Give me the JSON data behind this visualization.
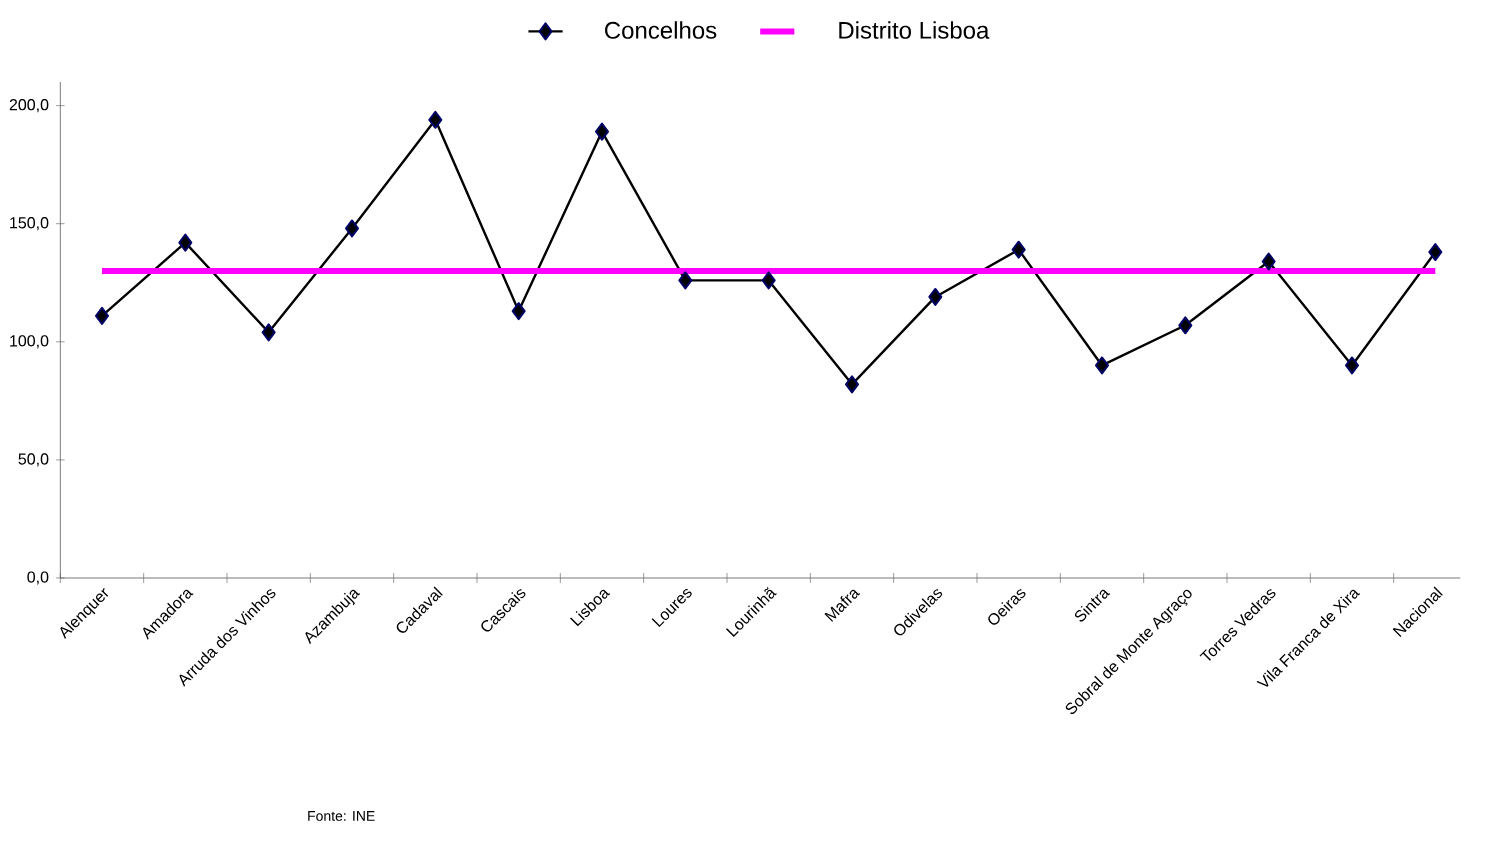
{
  "chart_data": {
    "type": "line",
    "categories": [
      "Alenquer",
      "Amadora",
      "Arruda dos Vinhos",
      "Azambuja",
      "Cadaval",
      "Cascais",
      "Lisboa",
      "Loures",
      "Lourinhã",
      "Mafra",
      "Odivelas",
      "Oeiras",
      "Sintra",
      "Sobral de Monte Agraço",
      "Torres Vedras",
      "Vila Franca de Xira",
      "Nacional"
    ],
    "series": [
      {
        "name": "Concelhos",
        "color": "#000000",
        "marker": "diamond",
        "values": [
          111,
          142,
          104,
          148,
          194,
          113,
          189,
          126,
          126,
          82,
          119,
          139,
          90,
          107,
          134,
          90,
          138
        ]
      },
      {
        "name": "Distrito Lisboa",
        "color": "#ff00ff",
        "marker": "none",
        "values": [
          130,
          130,
          130,
          130,
          130,
          130,
          130,
          130,
          130,
          130,
          130,
          130,
          130,
          130,
          130,
          130,
          130
        ]
      }
    ],
    "ylim": [
      0,
      210
    ],
    "yticks": [
      {
        "value": 0,
        "label": "0,0"
      },
      {
        "value": 50,
        "label": "50,0"
      },
      {
        "value": 100,
        "label": "100,0"
      },
      {
        "value": 150,
        "label": "150,0"
      },
      {
        "value": 200,
        "label": "200,0"
      }
    ],
    "legend": "top",
    "grid": false,
    "annotations": [
      "Fonte: INE"
    ]
  }
}
